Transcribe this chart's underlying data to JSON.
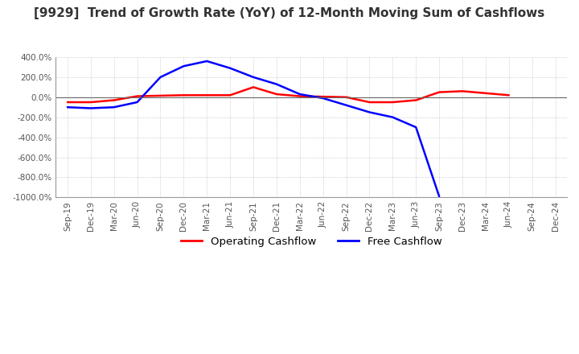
{
  "title": "[9929]  Trend of Growth Rate (YoY) of 12-Month Moving Sum of Cashflows",
  "title_fontsize": 11,
  "ylim": [
    -1000,
    400
  ],
  "yticks": [
    400,
    200,
    0,
    -200,
    -400,
    -600,
    -800,
    -1000
  ],
  "legend_labels": [
    "Operating Cashflow",
    "Free Cashflow"
  ],
  "legend_colors": [
    "#ff0000",
    "#0000ff"
  ],
  "background_color": "#ffffff",
  "grid_color": "#b0b0b0",
  "x_labels": [
    "Sep-19",
    "Dec-19",
    "Mar-20",
    "Jun-20",
    "Sep-20",
    "Dec-20",
    "Mar-21",
    "Jun-21",
    "Sep-21",
    "Dec-21",
    "Mar-22",
    "Jun-22",
    "Sep-22",
    "Dec-22",
    "Mar-23",
    "Jun-23",
    "Sep-23",
    "Dec-23",
    "Mar-24",
    "Jun-24",
    "Sep-24",
    "Dec-24"
  ],
  "operating_cashflow": [
    -50,
    -50,
    -30,
    10,
    15,
    20,
    20,
    20,
    100,
    30,
    10,
    5,
    0,
    -50,
    -50,
    -30,
    50,
    60,
    40,
    20,
    null,
    null
  ],
  "free_cashflow": [
    -100,
    -110,
    -100,
    -50,
    200,
    310,
    360,
    290,
    200,
    130,
    30,
    -10,
    -80,
    -150,
    -200,
    -300,
    -990,
    null,
    null,
    null,
    null,
    null
  ]
}
